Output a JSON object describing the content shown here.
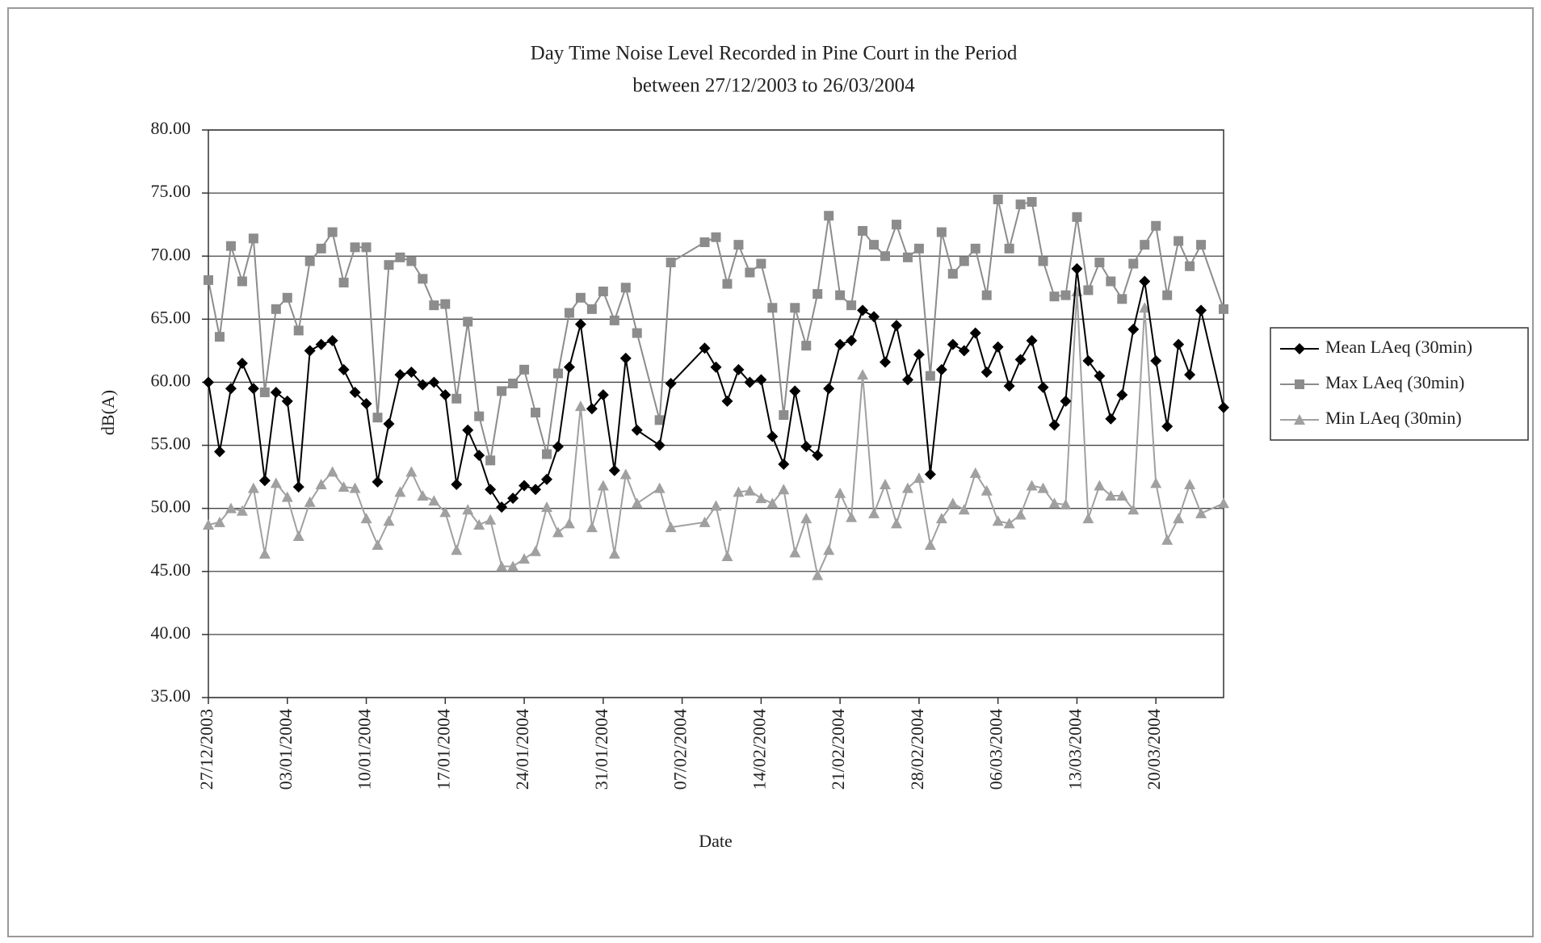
{
  "chart_data": {
    "type": "line",
    "title": "Day Time Noise Level Recorded in Pine Court in the Period",
    "subtitle": "between 27/12/2003 to 26/03/2004",
    "x_label": "Date",
    "y_label": "dB(A)",
    "x": [
      "27/12/2003",
      "28/12/2003",
      "29/12/2003",
      "30/12/2003",
      "31/12/2003",
      "01/01/2004",
      "02/01/2004",
      "03/01/2004",
      "04/01/2004",
      "05/01/2004",
      "06/01/2004",
      "07/01/2004",
      "08/01/2004",
      "09/01/2004",
      "10/01/2004",
      "11/01/2004",
      "12/01/2004",
      "13/01/2004",
      "14/01/2004",
      "15/01/2004",
      "16/01/2004",
      "17/01/2004",
      "18/01/2004",
      "19/01/2004",
      "20/01/2004",
      "21/01/2004",
      "22/01/2004",
      "23/01/2004",
      "24/01/2004",
      "25/01/2004",
      "26/01/2004",
      "27/01/2004",
      "28/01/2004",
      "29/01/2004",
      "30/01/2004",
      "31/01/2004",
      "01/02/2004",
      "02/02/2004",
      "03/02/2004",
      "05/02/2004",
      "06/02/2004",
      "09/02/2004",
      "10/02/2004",
      "11/02/2004",
      "12/02/2004",
      "13/02/2004",
      "14/02/2004",
      "15/02/2004",
      "16/02/2004",
      "17/02/2004",
      "18/02/2004",
      "19/02/2004",
      "20/02/2004",
      "21/02/2004",
      "22/02/2004",
      "23/02/2004",
      "24/02/2004",
      "25/02/2004",
      "26/02/2004",
      "27/02/2004",
      "28/02/2004",
      "29/02/2004",
      "01/03/2004",
      "02/03/2004",
      "03/03/2004",
      "04/03/2004",
      "05/03/2004",
      "06/03/2004",
      "07/03/2004",
      "08/03/2004",
      "09/03/2004",
      "10/03/2004",
      "11/03/2004",
      "12/03/2004",
      "13/03/2004",
      "14/03/2004",
      "15/03/2004",
      "16/03/2004",
      "17/03/2004",
      "18/03/2004",
      "19/03/2004",
      "20/03/2004",
      "21/03/2004",
      "22/03/2004",
      "23/03/2004",
      "24/03/2004",
      "26/03/2004"
    ],
    "series": [
      {
        "name": "Mean LAeq (30min)",
        "color": "#000000",
        "marker": "diamond",
        "values": [
          60.0,
          54.5,
          59.5,
          61.5,
          59.5,
          52.2,
          59.2,
          58.5,
          51.7,
          62.5,
          63.0,
          63.3,
          61.0,
          59.2,
          58.3,
          52.1,
          56.7,
          60.6,
          60.8,
          59.8,
          60.0,
          59.0,
          51.9,
          56.2,
          54.2,
          51.5,
          50.1,
          50.8,
          51.8,
          51.5,
          52.3,
          54.9,
          61.2,
          64.6,
          57.9,
          59.0,
          53.0,
          61.9,
          56.2,
          55.0,
          59.9,
          62.7,
          61.2,
          58.5,
          61.0,
          60.0,
          60.2,
          55.7,
          53.5,
          59.3,
          54.9,
          54.2,
          59.5,
          63.0,
          63.3,
          65.7,
          65.2,
          61.6,
          64.5,
          60.2,
          62.2,
          52.7,
          61.0,
          63.0,
          62.5,
          63.9,
          60.8,
          62.8,
          59.7,
          61.8,
          63.3,
          59.6,
          56.6,
          58.5,
          69.0,
          61.7,
          60.5,
          57.1,
          59.0,
          64.2,
          68.0,
          61.7,
          56.5,
          63.0,
          60.6,
          65.7,
          58.0
        ]
      },
      {
        "name": "Max LAeq (30min)",
        "color": "#8c8c8c",
        "marker": "square",
        "values": [
          68.1,
          63.6,
          70.8,
          68.0,
          71.4,
          59.2,
          65.8,
          66.7,
          64.1,
          69.6,
          70.6,
          71.9,
          67.9,
          70.7,
          70.7,
          57.2,
          69.3,
          69.9,
          69.6,
          68.2,
          66.1,
          66.2,
          58.7,
          64.8,
          57.3,
          53.8,
          59.3,
          59.9,
          61.0,
          57.6,
          54.3,
          60.7,
          65.5,
          66.7,
          65.8,
          67.2,
          64.9,
          67.5,
          63.9,
          57.0,
          69.5,
          71.1,
          71.5,
          67.8,
          70.9,
          68.7,
          69.4,
          65.9,
          57.4,
          65.9,
          62.9,
          67.0,
          73.2,
          66.9,
          66.1,
          72.0,
          70.9,
          70.0,
          72.5,
          69.9,
          70.6,
          60.5,
          71.9,
          68.6,
          69.6,
          70.6,
          66.9,
          74.5,
          70.6,
          74.1,
          74.3,
          69.6,
          66.8,
          66.9,
          73.1,
          67.3,
          69.5,
          68.0,
          66.6,
          69.4,
          70.9,
          72.4,
          66.9,
          71.2,
          69.2,
          70.9,
          65.8
        ]
      },
      {
        "name": "Min LAeq (30min)",
        "color": "#a0a0a0",
        "marker": "triangle",
        "values": [
          48.7,
          48.9,
          50.0,
          49.8,
          51.6,
          46.4,
          52.0,
          50.9,
          47.8,
          50.5,
          51.9,
          52.9,
          51.7,
          51.6,
          49.2,
          47.1,
          49.0,
          51.3,
          52.9,
          51.0,
          50.6,
          49.7,
          46.7,
          49.9,
          48.7,
          49.1,
          45.4,
          45.4,
          46.0,
          46.6,
          50.1,
          48.1,
          48.8,
          58.1,
          48.5,
          51.8,
          46.4,
          52.7,
          50.4,
          51.6,
          48.5,
          48.9,
          50.2,
          46.2,
          51.3,
          51.4,
          50.8,
          50.4,
          51.5,
          46.5,
          49.2,
          44.7,
          46.7,
          51.2,
          49.3,
          60.6,
          49.6,
          51.9,
          48.8,
          51.6,
          52.4,
          47.1,
          49.2,
          50.4,
          49.9,
          52.8,
          51.4,
          49.0,
          48.8,
          49.5,
          51.8,
          51.6,
          50.4,
          50.3,
          67.2,
          49.2,
          51.8,
          51.0,
          51.0,
          49.9,
          65.9,
          52.0,
          47.5,
          49.2,
          51.9,
          49.6,
          50.4
        ]
      }
    ],
    "xlim": [
      "27/12/2003",
      "26/03/2004"
    ],
    "xticks": [
      "27/12/2003",
      "03/01/2004",
      "10/01/2004",
      "17/01/2004",
      "24/01/2004",
      "31/01/2004",
      "07/02/2004",
      "14/02/2004",
      "21/02/2004",
      "28/02/2004",
      "06/03/2004",
      "13/03/2004",
      "20/03/2004"
    ],
    "ylim": [
      35,
      80
    ],
    "yticks": [
      {
        "value": 35,
        "label": "35.00"
      },
      {
        "value": 40,
        "label": "40.00"
      },
      {
        "value": 45,
        "label": "45.00"
      },
      {
        "value": 50,
        "label": "50.00"
      },
      {
        "value": 55,
        "label": "55.00"
      },
      {
        "value": 60,
        "label": "60.00"
      },
      {
        "value": 65,
        "label": "65.00"
      },
      {
        "value": 70,
        "label": "70.00"
      },
      {
        "value": 75,
        "label": "75.00"
      },
      {
        "value": 80,
        "label": "80.00"
      }
    ],
    "grid": true,
    "legend": "right"
  }
}
